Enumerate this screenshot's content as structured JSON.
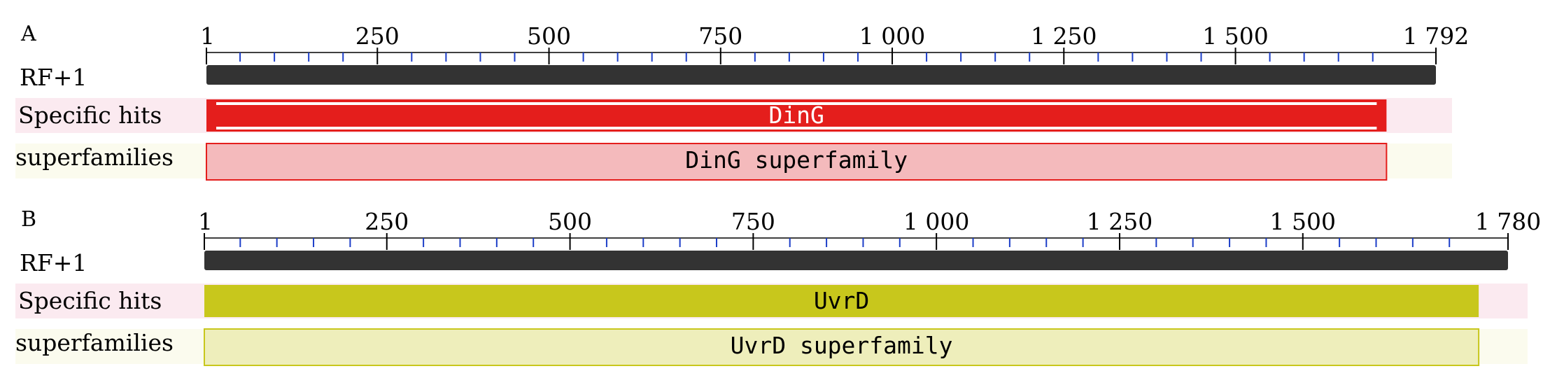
{
  "panels": [
    {
      "letter": "A",
      "seq_length": 1792,
      "ticks": [
        {
          "value": 1,
          "label": "1"
        },
        {
          "value": 250,
          "label": "250"
        },
        {
          "value": 500,
          "label": "500"
        },
        {
          "value": 750,
          "label": "750"
        },
        {
          "value": 1000,
          "label": "1 000"
        },
        {
          "value": 1250,
          "label": "1 250"
        },
        {
          "value": 1500,
          "label": "1 500"
        },
        {
          "value": 1792,
          "label": "1 792"
        }
      ],
      "minor_tick_step": 50,
      "rows": {
        "rf": "RF+1",
        "specific": "Specific hits",
        "superfamilies": "superfamilies"
      },
      "specific_hit": {
        "name": "DinG",
        "start": 1,
        "end": 1720,
        "fill": "#e41e1c",
        "text_color": "#ffffff"
      },
      "superfamily_hit": {
        "name": "DinG superfamily",
        "start": 1,
        "end": 1720,
        "fill": "#f4babc",
        "stroke": "#e41e1c",
        "text_color": "#000000"
      },
      "row_bg_specific": "#fbeaf0",
      "row_bg_super": "#fbfbee"
    },
    {
      "letter": "B",
      "seq_length": 1780,
      "ticks": [
        {
          "value": 1,
          "label": "1"
        },
        {
          "value": 250,
          "label": "250"
        },
        {
          "value": 500,
          "label": "500"
        },
        {
          "value": 750,
          "label": "750"
        },
        {
          "value": 1000,
          "label": "1 000"
        },
        {
          "value": 1250,
          "label": "1 250"
        },
        {
          "value": 1500,
          "label": "1 500"
        },
        {
          "value": 1780,
          "label": "1 780"
        }
      ],
      "minor_tick_step": 50,
      "rows": {
        "rf": "RF+1",
        "specific": "Specific hits",
        "superfamilies": "superfamilies"
      },
      "specific_hit": {
        "name": "UvrD",
        "start": 1,
        "end": 1740,
        "fill": "#c8c71c",
        "text_color": "#000000"
      },
      "superfamily_hit": {
        "name": "UvrD superfamily",
        "start": 1,
        "end": 1740,
        "fill": "#eeeebb",
        "stroke": "#c8c71c",
        "text_color": "#000000"
      },
      "row_bg_specific": "#fbeaf0",
      "row_bg_super": "#fbfbee"
    }
  ]
}
